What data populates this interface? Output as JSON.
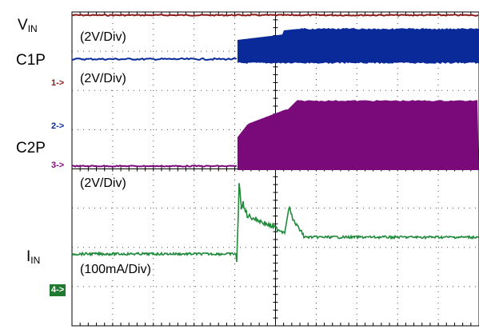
{
  "labels": {
    "vin_main": "V",
    "vin_sub": "IN",
    "c1p": "C1P",
    "c2p": "C2P",
    "iin_main": "I",
    "iin_sub": "IN"
  },
  "scales": {
    "c1": "(2V/Div)",
    "c2": "(2V/Div)",
    "c3": "(2V/Div)",
    "c4": "(100mA/Div)"
  },
  "markers": {
    "ch1": "1->",
    "ch2": "2->",
    "ch3": "3->",
    "ch4": "4->"
  },
  "colors": {
    "grid": "#000000",
    "vin": "#8b1a1a",
    "c1p": "#0a2a9a",
    "c2p": "#7a0a7a",
    "iin": "#1e8a3a",
    "ch4_badge": "#1e7a2e"
  },
  "chart_data": {
    "type": "line",
    "grid": true,
    "divisions": {
      "x": 10,
      "y": 8
    },
    "series": [
      {
        "name": "VIN",
        "scale": "2V/Div",
        "description_points": [
          [
            0,
            3.9
          ],
          [
            10,
            3.9
          ]
        ]
      },
      {
        "name": "C1P",
        "scale": "2V/Div",
        "description_points": [
          [
            0,
            6.7
          ],
          [
            8.1,
            6.7
          ],
          [
            8.1,
            7.1
          ],
          [
            10.5,
            7.3
          ],
          [
            20,
            7.3
          ]
        ]
      },
      {
        "name": "C2P",
        "scale": "2V/Div",
        "description_points": [
          [
            0,
            0
          ],
          [
            8.1,
            0
          ],
          [
            8.1,
            2.1
          ],
          [
            10.5,
            2.9
          ],
          [
            20,
            3.0
          ]
        ]
      },
      {
        "name": "IIN",
        "scale": "100mA/Div",
        "description_points": [
          [
            0,
            0
          ],
          [
            8.1,
            0
          ],
          [
            8.4,
            3.4
          ],
          [
            8.6,
            1.9
          ],
          [
            10.4,
            1.1
          ],
          [
            10.8,
            2.5
          ],
          [
            11.2,
            1.0
          ],
          [
            20,
            0.9
          ]
        ]
      }
    ]
  }
}
